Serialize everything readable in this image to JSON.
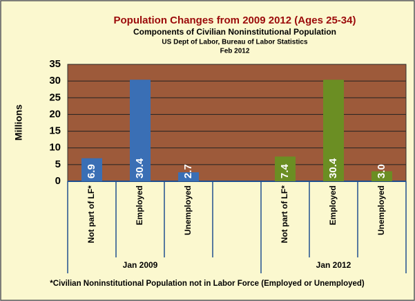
{
  "chart_data": {
    "type": "bar",
    "title": "Population Changes  from 2009 2012 (Ages 25-34)",
    "subtitles": [
      "Components of Civilian Noninstitutional Population",
      "US Dept of Labor, Bureau of Labor Statistics",
      "Feb 2012"
    ],
    "y_label": "Millions",
    "footnote": "*Civilian Noninstitutional Population not in Labor Force (Employed or Unemployed)",
    "categories": [
      "Not part of LF*",
      "Employed",
      "Unemployed",
      null,
      "Not part of LF*",
      "Employed",
      "Unemployed"
    ],
    "series": [
      {
        "name": "Jan 2009",
        "color": "#3a6fb5",
        "values": [
          6.9,
          30.4,
          2.7,
          null,
          null,
          null,
          null
        ]
      },
      {
        "name": "Jan 2012",
        "color": "#6b8e23",
        "values": [
          null,
          null,
          null,
          null,
          7.4,
          30.4,
          3.0
        ],
        "value_labels": [
          null,
          null,
          null,
          null,
          "7.4",
          "30.4",
          "3.0"
        ]
      }
    ],
    "ylim": [
      0,
      35
    ],
    "yticks": [
      0,
      5,
      10,
      15,
      20,
      25,
      30,
      35
    ],
    "grid": true
  }
}
